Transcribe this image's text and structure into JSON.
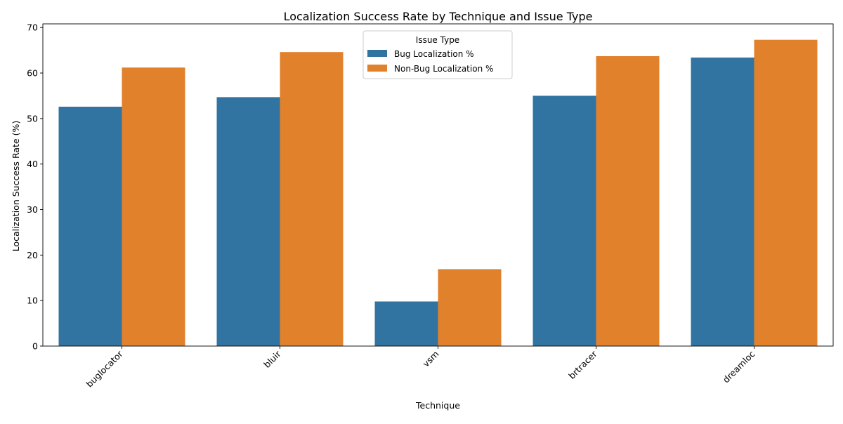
{
  "chart_data": {
    "type": "bar",
    "title": "Localization Success Rate by Technique and Issue Type",
    "xlabel": "Technique",
    "ylabel": "Localization Success Rate (%)",
    "categories": [
      "buglocator",
      "bluir",
      "vsm",
      "brtracer",
      "dreamloc"
    ],
    "series": [
      {
        "name": "Bug Localization %",
        "color": "#3274a1",
        "values": [
          52.6,
          54.7,
          9.8,
          55.0,
          63.4
        ]
      },
      {
        "name": "Non-Bug Localization %",
        "color": "#e1812c",
        "values": [
          61.2,
          64.6,
          16.9,
          63.7,
          67.3
        ]
      }
    ],
    "ylim": [
      0,
      70.8
    ],
    "yticks": [
      0,
      10,
      20,
      30,
      40,
      50,
      60,
      70
    ],
    "legend": {
      "title": "Issue Type",
      "position": "top-center"
    },
    "grid": false,
    "xtick_rotation": 45
  }
}
